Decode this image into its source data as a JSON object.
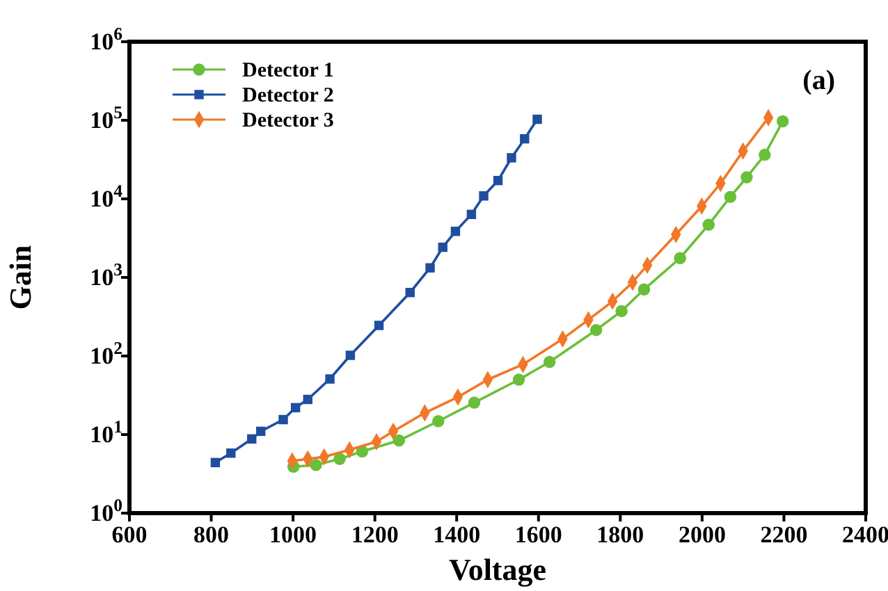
{
  "chart_data": {
    "type": "line",
    "xlabel": "Voltage",
    "ylabel": "Gain",
    "log": "y",
    "grid": false,
    "legend": "top left",
    "line_style": "solid",
    "annotations": [
      "(a)"
    ],
    "xlim": [
      600,
      2400
    ],
    "xticks": [
      600,
      800,
      1000,
      1200,
      1400,
      1600,
      1800,
      2000,
      2200,
      2400
    ],
    "ylim": [
      1,
      1000000
    ],
    "yticks": [
      {
        "value": 1,
        "label": "10$^{0}$"
      },
      {
        "value": 10,
        "label": "10$^{1}$"
      },
      {
        "value": 100,
        "label": "10$^{2}$"
      },
      {
        "value": 1000,
        "label": "10$^{3}$"
      },
      {
        "value": 10000,
        "label": "10$^{4}$"
      },
      {
        "value": 100000,
        "label": "10$^{5}$"
      },
      {
        "value": 1000000,
        "label": "10$^{6}$"
      }
    ],
    "series": [
      {
        "name": "Detector 1",
        "color": "#6abf3a",
        "marker": "circle",
        "x": [
          1001,
          1056,
          1114,
          1169,
          1259,
          1355,
          1443,
          1552,
          1627,
          1741,
          1803,
          1858,
          1946,
          2016,
          2069,
          2109,
          2153,
          2197
        ],
        "values": [
          3.9,
          4.1,
          4.9,
          6.1,
          8.4,
          14.8,
          25.5,
          50,
          84,
          214,
          373,
          703,
          1760,
          4690,
          10600,
          18800,
          36400,
          97000
        ]
      },
      {
        "name": "Detector 2",
        "color": "#1f4e9f",
        "marker": "square",
        "x": [
          810,
          848,
          899,
          921,
          976,
          1006,
          1036,
          1090,
          1140,
          1210,
          1286,
          1335,
          1366,
          1397,
          1436,
          1466,
          1501,
          1534,
          1566,
          1597
        ],
        "values": [
          4.4,
          5.8,
          8.8,
          11,
          15.5,
          22,
          28,
          51,
          102,
          245,
          642,
          1324,
          2420,
          3860,
          6340,
          10900,
          17100,
          33300,
          58100,
          103000
        ]
      },
      {
        "name": "Detector 3",
        "color": "#f07828",
        "marker": "diamond",
        "x": [
          998,
          1036,
          1076,
          1138,
          1204,
          1245,
          1322,
          1403,
          1476,
          1562,
          1659,
          1722,
          1781,
          1830,
          1866,
          1936,
          1999,
          2045,
          2100,
          2162
        ],
        "values": [
          4.6,
          4.9,
          5.2,
          6.4,
          8.1,
          11,
          18.9,
          30,
          50,
          78,
          165,
          289,
          497,
          868,
          1430,
          3520,
          8070,
          15700,
          40500,
          108000
        ]
      }
    ]
  }
}
